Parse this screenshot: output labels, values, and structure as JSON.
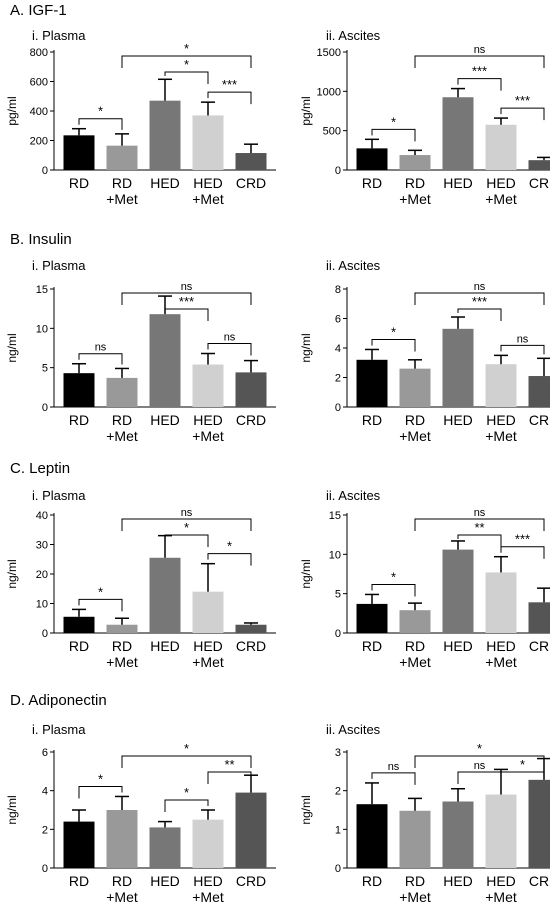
{
  "sections": [
    {
      "title": "A. IGF-1"
    },
    {
      "title": "B. Insulin"
    },
    {
      "title": "C. Leptin"
    },
    {
      "title": "D. Adiponectin"
    }
  ],
  "colors": {
    "RD": "#000000",
    "RD+Met": "#999999",
    "HED": "#777777",
    "HED+Met": "#d0d0d0",
    "CRD": "#555555"
  },
  "chart_data": [
    {
      "type": "bar",
      "panel": "i. Plasma",
      "section": "A. IGF-1",
      "ylabel": "pg/ml",
      "ylim": [
        0,
        800
      ],
      "yticks": [
        0,
        200,
        400,
        600,
        800
      ],
      "categories": [
        "RD",
        "RD +Met",
        "HED",
        "HED +Met",
        "CRD"
      ],
      "values": [
        235,
        165,
        470,
        370,
        115
      ],
      "errors": [
        45,
        80,
        145,
        90,
        60
      ],
      "comparisons": [
        {
          "from": 0,
          "to": 1,
          "label": "*"
        },
        {
          "from": 2,
          "to": 3,
          "label": "*"
        },
        {
          "from": 3,
          "to": 4,
          "label": "***"
        },
        {
          "from": 1,
          "to": 4,
          "label": "*"
        }
      ]
    },
    {
      "type": "bar",
      "panel": "ii. Ascites",
      "section": "A. IGF-1",
      "ylabel": "pg/ml",
      "ylim": [
        0,
        1500
      ],
      "yticks": [
        0,
        500,
        1000,
        1500
      ],
      "categories": [
        "RD",
        "RD +Met",
        "HED",
        "HED +Met",
        "CRD"
      ],
      "values": [
        275,
        190,
        925,
        575,
        125
      ],
      "errors": [
        115,
        60,
        110,
        85,
        35
      ],
      "comparisons": [
        {
          "from": 0,
          "to": 1,
          "label": "*"
        },
        {
          "from": 2,
          "to": 3,
          "label": "***"
        },
        {
          "from": 3,
          "to": 4,
          "label": "***"
        },
        {
          "from": 1,
          "to": 4,
          "label": "ns"
        }
      ]
    },
    {
      "type": "bar",
      "panel": "i. Plasma",
      "section": "B. Insulin",
      "ylabel": "ng/ml",
      "ylim": [
        0,
        15
      ],
      "yticks": [
        0,
        5,
        10,
        15
      ],
      "categories": [
        "RD",
        "RD +Met",
        "HED",
        "HED +Met",
        "CRD"
      ],
      "values": [
        4.3,
        3.7,
        11.8,
        5.4,
        4.4
      ],
      "errors": [
        1.2,
        1.2,
        2.3,
        1.4,
        1.5
      ],
      "comparisons": [
        {
          "from": 0,
          "to": 1,
          "label": "ns"
        },
        {
          "from": 3,
          "to": 4,
          "label": "ns"
        },
        {
          "from": 2,
          "to": 3,
          "label": "***"
        },
        {
          "from": 1,
          "to": 4,
          "label": "ns"
        }
      ]
    },
    {
      "type": "bar",
      "panel": "ii. Ascites",
      "section": "B. Insulin",
      "ylabel": "ng/ml",
      "ylim": [
        0,
        8
      ],
      "yticks": [
        0,
        2,
        4,
        6,
        8
      ],
      "categories": [
        "RD",
        "RD +Met",
        "HED",
        "HED +Met",
        "CRD"
      ],
      "values": [
        3.2,
        2.6,
        5.3,
        2.9,
        2.1
      ],
      "errors": [
        0.7,
        0.6,
        0.8,
        0.6,
        1.2
      ],
      "comparisons": [
        {
          "from": 0,
          "to": 1,
          "label": "*"
        },
        {
          "from": 3,
          "to": 4,
          "label": "ns"
        },
        {
          "from": 2,
          "to": 3,
          "label": "***"
        },
        {
          "from": 1,
          "to": 4,
          "label": "ns"
        }
      ]
    },
    {
      "type": "bar",
      "panel": "i. Plasma",
      "section": "C. Leptin",
      "ylabel": "ng/ml",
      "ylim": [
        0,
        40
      ],
      "yticks": [
        0,
        10,
        20,
        30,
        40
      ],
      "categories": [
        "RD",
        "RD +Met",
        "HED",
        "HED +Met",
        "CRD"
      ],
      "values": [
        5.5,
        2.8,
        25.5,
        14.0,
        2.8
      ],
      "errors": [
        2.5,
        2.2,
        7.5,
        9.5,
        0.6
      ],
      "comparisons": [
        {
          "from": 0,
          "to": 1,
          "label": "*"
        },
        {
          "from": 2,
          "to": 3,
          "label": "*"
        },
        {
          "from": 3,
          "to": 4,
          "label": "*"
        },
        {
          "from": 1,
          "to": 4,
          "label": "ns"
        }
      ]
    },
    {
      "type": "bar",
      "panel": "ii. Ascites",
      "section": "C. Leptin",
      "ylabel": "ng/ml",
      "ylim": [
        0,
        15
      ],
      "yticks": [
        0,
        5,
        10,
        15
      ],
      "categories": [
        "RD",
        "RD +Met",
        "HED",
        "HED +Met",
        "CRD"
      ],
      "values": [
        3.7,
        2.9,
        10.6,
        7.7,
        3.9
      ],
      "errors": [
        1.2,
        0.9,
        1.1,
        2.0,
        1.8
      ],
      "comparisons": [
        {
          "from": 0,
          "to": 1,
          "label": "*"
        },
        {
          "from": 2,
          "to": 3,
          "label": "**"
        },
        {
          "from": 3,
          "to": 4,
          "label": "***"
        },
        {
          "from": 1,
          "to": 4,
          "label": "ns"
        }
      ]
    },
    {
      "type": "bar",
      "panel": "i. Plasma",
      "section": "D. Adiponectin",
      "ylabel": "ng/ml",
      "ylim": [
        0,
        6
      ],
      "yticks": [
        0,
        2,
        4,
        6
      ],
      "categories": [
        "RD",
        "RD +Met",
        "HED",
        "HED +Met",
        "CRD"
      ],
      "values": [
        2.4,
        3.0,
        2.1,
        2.5,
        3.9
      ],
      "errors": [
        0.6,
        0.7,
        0.3,
        0.5,
        0.9
      ],
      "comparisons": [
        {
          "from": 0,
          "to": 1,
          "label": "*"
        },
        {
          "from": 2,
          "to": 3,
          "label": "*"
        },
        {
          "from": 3,
          "to": 4,
          "label": "**"
        },
        {
          "from": 1,
          "to": 4,
          "label": "*"
        }
      ]
    },
    {
      "type": "bar",
      "panel": "ii. Ascites",
      "section": "D. Adiponectin",
      "ylabel": "ng/ml",
      "ylim": [
        0,
        3
      ],
      "yticks": [
        0,
        1,
        2,
        3
      ],
      "categories": [
        "RD",
        "RD +Met",
        "HED",
        "HED +Met",
        "CRD"
      ],
      "values": [
        1.65,
        1.48,
        1.72,
        1.9,
        2.28
      ],
      "errors": [
        0.55,
        0.32,
        0.33,
        0.65,
        0.55
      ],
      "comparisons": [
        {
          "from": 0,
          "to": 1,
          "label": "ns"
        },
        {
          "from": 2,
          "to": 3,
          "label": "ns"
        },
        {
          "from": 3,
          "to": 4,
          "label": "*"
        },
        {
          "from": 1,
          "to": 4,
          "label": "*"
        }
      ]
    }
  ]
}
